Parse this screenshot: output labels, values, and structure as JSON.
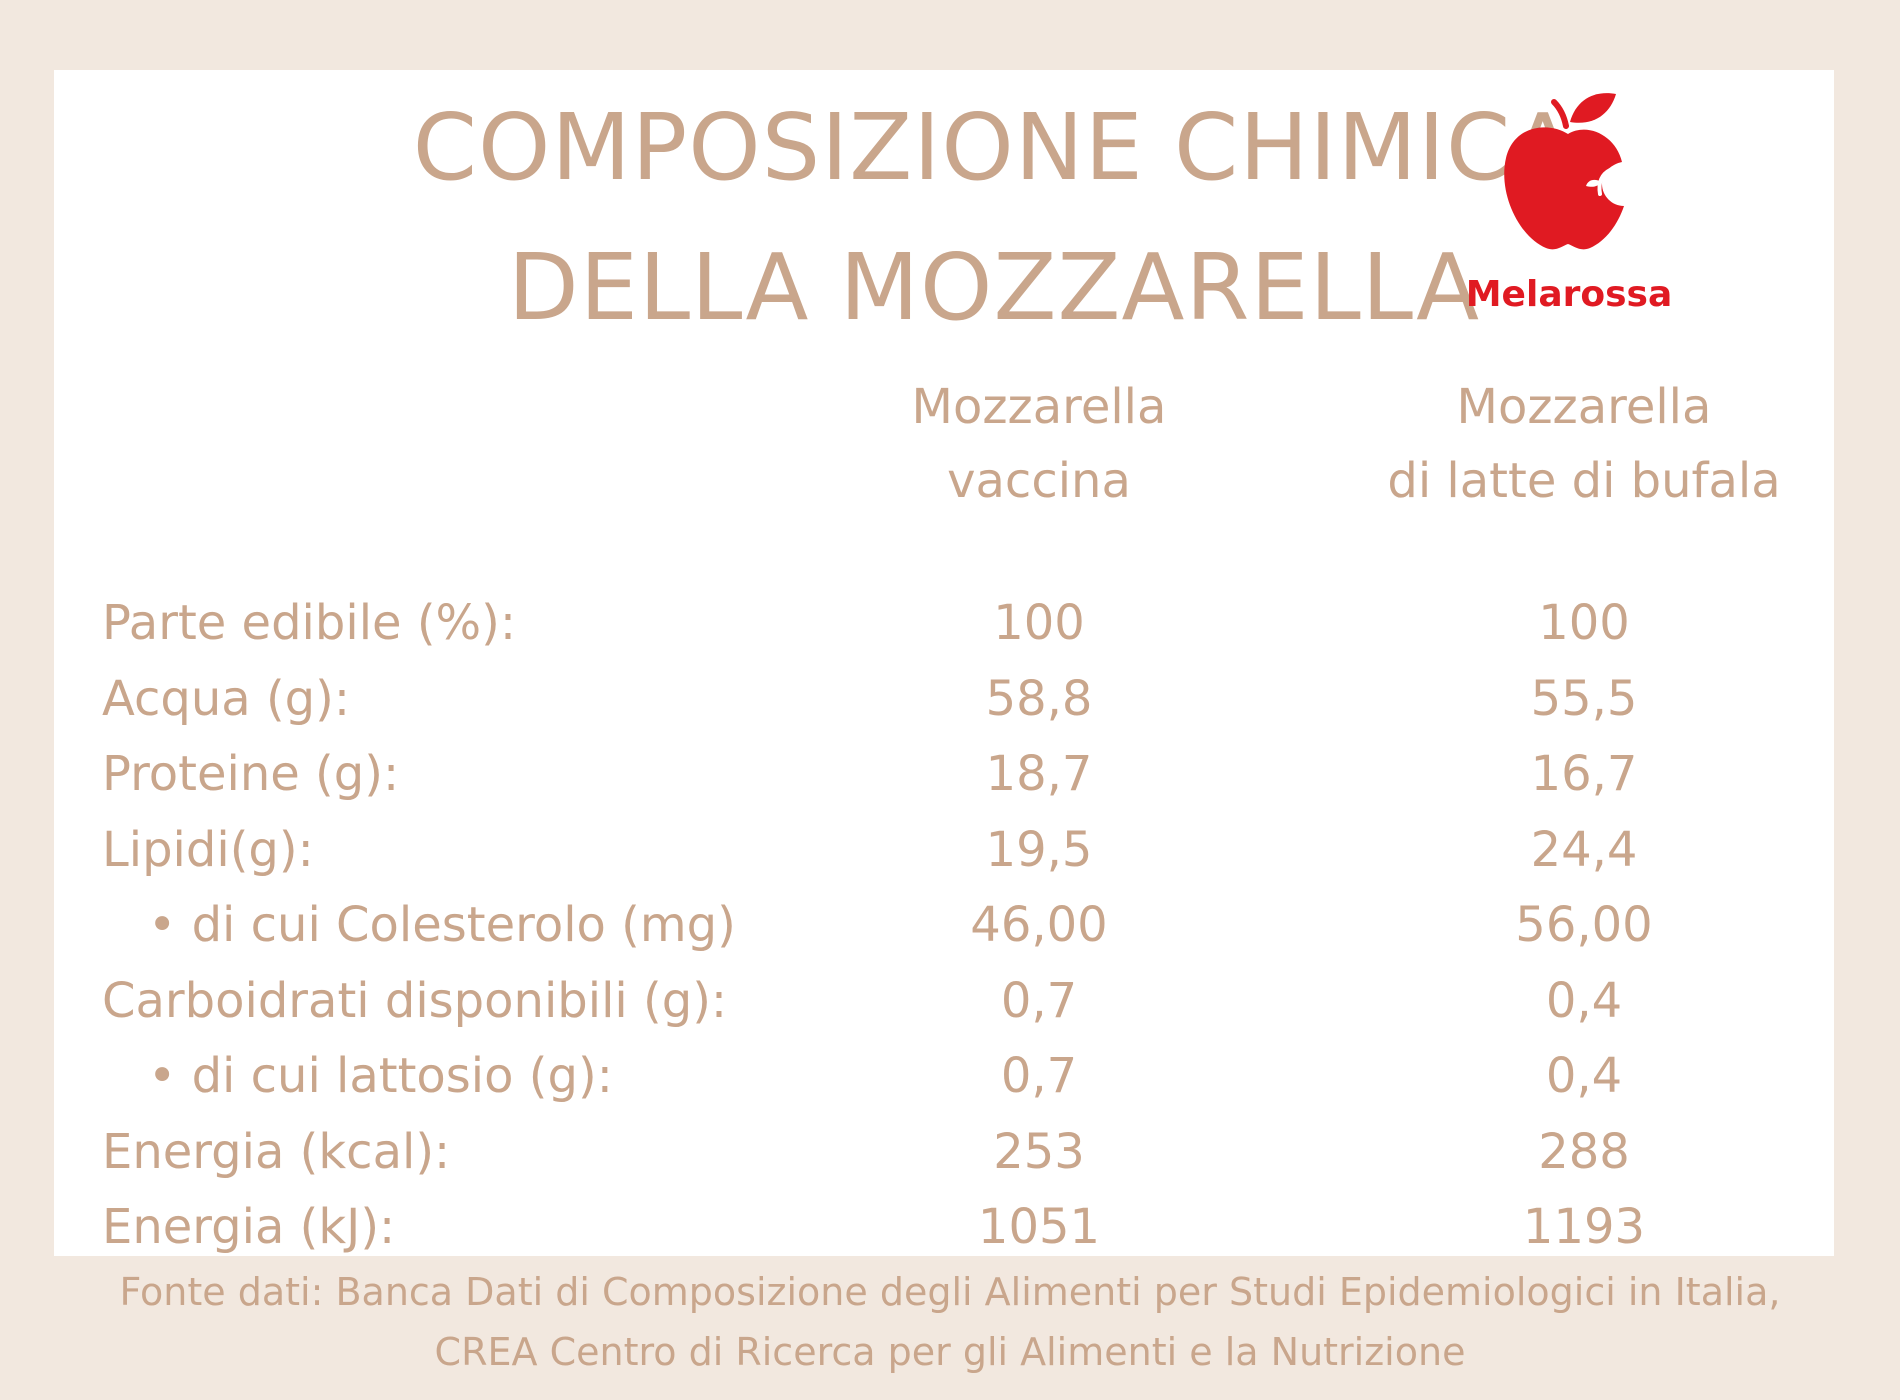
{
  "title": {
    "line1": "COMPOSIZIONE CHIMICA",
    "line2": "DELLA MOZZARELLA"
  },
  "logo": {
    "brand": "Melarossa",
    "icon": "apple-icon",
    "color": "#e01a22"
  },
  "columns": {
    "a": {
      "line1": "Mozzarella",
      "line2": "vaccina"
    },
    "b": {
      "line1": "Mozzarella",
      "line2": "di latte di bufala"
    }
  },
  "rows": [
    {
      "label": "Parte edibile (%):",
      "a": "100",
      "b": "100"
    },
    {
      "label": "Acqua (g):",
      "a": "58,8",
      "b": "55,5"
    },
    {
      "label": "Proteine (g):",
      "a": "18,7",
      "b": "16,7"
    },
    {
      "label": "Lipidi(g):",
      "a": "19,5",
      "b": "24,4"
    },
    {
      "label": "• di cui Colesterolo (mg)",
      "a": "46,00",
      "b": "56,00"
    },
    {
      "label": "Carboidrati disponibili (g):",
      "a": "0,7",
      "b": "0,4"
    },
    {
      "label": "• di cui lattosio (g):",
      "a": "0,7",
      "b": "0,4"
    },
    {
      "label": "Energia (kcal):",
      "a": "253",
      "b": "288"
    },
    {
      "label": "Energia (kJ):",
      "a": "1051",
      "b": "1193"
    }
  ],
  "source": {
    "line1": "Fonte dati: Banca Dati di Composizione degli Alimenti per Studi Epidemiologici in Italia,",
    "line2": "CREA Centro di Ricerca per gli Alimenti e la Nutrizione"
  },
  "colors": {
    "background": "#f2e8df",
    "card": "#ffffff",
    "text": "#c9a68c"
  }
}
